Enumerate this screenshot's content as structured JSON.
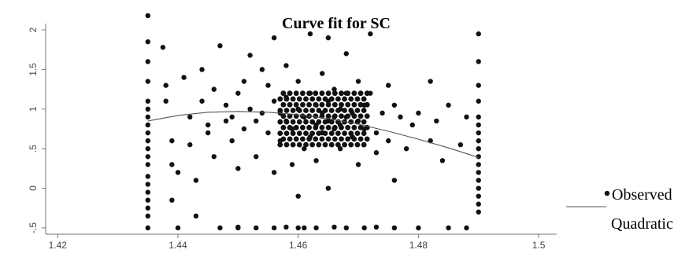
{
  "chart_data": {
    "type": "scatter",
    "title": "Curve fit for SC",
    "xlabel": "",
    "ylabel": "",
    "xlim": [
      1.418,
      1.503
    ],
    "ylim": [
      -0.58,
      2.08
    ],
    "xticks": [
      1.42,
      1.44,
      1.46,
      1.48,
      1.5
    ],
    "xtick_labels": [
      "1.42",
      "1.44",
      "1.46",
      "1.48",
      "1.5"
    ],
    "yticks": [
      -0.5,
      0,
      0.5,
      1,
      1.5,
      2
    ],
    "ytick_labels": [
      "-.5",
      "0",
      ".5",
      "1",
      "1.5",
      "2"
    ],
    "grid": false,
    "legend_position": "right",
    "series": [
      {
        "name": "Observed",
        "kind": "scatter",
        "color": "#111111",
        "points": [
          [
            1.435,
            2.18
          ],
          [
            1.435,
            1.85
          ],
          [
            1.435,
            1.6
          ],
          [
            1.435,
            1.35
          ],
          [
            1.435,
            1.1
          ],
          [
            1.435,
            1.0
          ],
          [
            1.435,
            0.9
          ],
          [
            1.435,
            0.8
          ],
          [
            1.435,
            0.7
          ],
          [
            1.435,
            0.6
          ],
          [
            1.435,
            0.5
          ],
          [
            1.435,
            0.4
          ],
          [
            1.435,
            0.3
          ],
          [
            1.435,
            0.15
          ],
          [
            1.435,
            0.05
          ],
          [
            1.435,
            -0.05
          ],
          [
            1.435,
            -0.15
          ],
          [
            1.435,
            -0.25
          ],
          [
            1.435,
            -0.35
          ],
          [
            1.435,
            -0.5
          ],
          [
            1.4375,
            1.78
          ],
          [
            1.438,
            1.3
          ],
          [
            1.438,
            1.1
          ],
          [
            1.439,
            0.6
          ],
          [
            1.439,
            0.3
          ],
          [
            1.439,
            -0.15
          ],
          [
            1.44,
            0.2
          ],
          [
            1.44,
            -0.5
          ],
          [
            1.441,
            1.4
          ],
          [
            1.442,
            0.9
          ],
          [
            1.442,
            0.55
          ],
          [
            1.443,
            0.1
          ],
          [
            1.443,
            -0.35
          ],
          [
            1.444,
            1.1
          ],
          [
            1.444,
            1.5
          ],
          [
            1.445,
            0.8
          ],
          [
            1.445,
            0.7
          ],
          [
            1.446,
            0.4
          ],
          [
            1.446,
            1.25
          ],
          [
            1.447,
            1.8
          ],
          [
            1.447,
            -0.5
          ],
          [
            1.448,
            1.05
          ],
          [
            1.448,
            0.85
          ],
          [
            1.449,
            0.9
          ],
          [
            1.449,
            0.6
          ],
          [
            1.45,
            1.2
          ],
          [
            1.45,
            0.25
          ],
          [
            1.45,
            -0.5
          ],
          [
            1.451,
            1.35
          ],
          [
            1.451,
            0.75
          ],
          [
            1.452,
            1.0
          ],
          [
            1.452,
            1.68
          ],
          [
            1.453,
            0.85
          ],
          [
            1.453,
            0.4
          ],
          [
            1.454,
            1.5
          ],
          [
            1.454,
            0.95
          ],
          [
            1.455,
            0.7
          ],
          [
            1.455,
            1.3
          ],
          [
            1.456,
            1.9
          ],
          [
            1.456,
            1.1
          ],
          [
            1.456,
            0.2
          ],
          [
            1.457,
            0.95
          ],
          [
            1.457,
            0.6
          ],
          [
            1.458,
            1.55
          ],
          [
            1.458,
            0.85
          ],
          [
            1.458,
            1.15
          ],
          [
            1.459,
            0.3
          ],
          [
            1.459,
            0.75
          ],
          [
            1.46,
            1.0
          ],
          [
            1.46,
            1.35
          ],
          [
            1.46,
            -0.1
          ],
          [
            1.46,
            -0.5
          ],
          [
            1.461,
            0.9
          ],
          [
            1.461,
            0.5
          ],
          [
            1.462,
            1.95
          ],
          [
            1.462,
            1.2
          ],
          [
            1.462,
            0.65
          ],
          [
            1.463,
            0.8
          ],
          [
            1.463,
            1.05
          ],
          [
            1.463,
            0.35
          ],
          [
            1.464,
            1.45
          ],
          [
            1.464,
            0.95
          ],
          [
            1.464,
            0.7
          ],
          [
            1.465,
            1.9
          ],
          [
            1.465,
            1.1
          ],
          [
            1.465,
            0.85
          ],
          [
            1.465,
            0.0
          ],
          [
            1.466,
            0.9
          ],
          [
            1.466,
            0.75
          ],
          [
            1.466,
            1.25
          ],
          [
            1.467,
            1.0
          ],
          [
            1.467,
            0.8
          ],
          [
            1.467,
            0.5
          ],
          [
            1.468,
            1.2
          ],
          [
            1.468,
            0.9
          ],
          [
            1.468,
            1.7
          ],
          [
            1.469,
            0.95
          ],
          [
            1.469,
            0.65
          ],
          [
            1.47,
            1.35
          ],
          [
            1.47,
            0.85
          ],
          [
            1.47,
            0.3
          ],
          [
            1.471,
            1.05
          ],
          [
            1.471,
            0.75
          ],
          [
            1.472,
            1.95
          ],
          [
            1.472,
            1.2
          ],
          [
            1.473,
            0.7
          ],
          [
            1.473,
            0.45
          ],
          [
            1.474,
            0.95
          ],
          [
            1.475,
            1.3
          ],
          [
            1.475,
            0.6
          ],
          [
            1.476,
            1.05
          ],
          [
            1.476,
            0.1
          ],
          [
            1.477,
            0.9
          ],
          [
            1.478,
            0.5
          ],
          [
            1.479,
            0.8
          ],
          [
            1.48,
            0.95
          ],
          [
            1.48,
            -0.5
          ],
          [
            1.482,
            1.35
          ],
          [
            1.482,
            0.6
          ],
          [
            1.483,
            0.85
          ],
          [
            1.484,
            0.35
          ],
          [
            1.485,
            1.05
          ],
          [
            1.485,
            -0.5
          ],
          [
            1.487,
            0.55
          ],
          [
            1.488,
            0.9
          ],
          [
            1.488,
            -0.5
          ],
          [
            1.49,
            1.95
          ],
          [
            1.49,
            1.6
          ],
          [
            1.49,
            1.3
          ],
          [
            1.49,
            1.1
          ],
          [
            1.49,
            0.9
          ],
          [
            1.49,
            0.8
          ],
          [
            1.49,
            0.7
          ],
          [
            1.49,
            0.6
          ],
          [
            1.49,
            0.5
          ],
          [
            1.49,
            0.4
          ],
          [
            1.49,
            0.3
          ],
          [
            1.49,
            0.2
          ],
          [
            1.49,
            0.1
          ],
          [
            1.49,
            0.0
          ],
          [
            1.49,
            -0.1
          ],
          [
            1.49,
            -0.2
          ],
          [
            1.49,
            -0.3
          ],
          [
            1.45,
            -0.49
          ],
          [
            1.453,
            -0.5
          ],
          [
            1.456,
            -0.5
          ],
          [
            1.458,
            -0.49
          ],
          [
            1.461,
            -0.5
          ],
          [
            1.463,
            -0.5
          ],
          [
            1.466,
            -0.49
          ],
          [
            1.468,
            -0.5
          ],
          [
            1.471,
            -0.5
          ],
          [
            1.473,
            -0.49
          ],
          [
            1.476,
            -0.5
          ]
        ]
      },
      {
        "name": "Quadratic",
        "kind": "line",
        "color": "#555555",
        "x": [
          1.435,
          1.44,
          1.445,
          1.45,
          1.455,
          1.46,
          1.465,
          1.47,
          1.475,
          1.48,
          1.485,
          1.49
        ],
        "y": [
          0.85,
          0.92,
          0.96,
          0.97,
          0.96,
          0.93,
          0.88,
          0.81,
          0.72,
          0.62,
          0.51,
          0.39
        ]
      }
    ],
    "dense_cluster": {
      "color": "#111111",
      "x_range": [
        1.457,
        1.472
      ],
      "y_range": [
        0.55,
        1.2
      ]
    }
  }
}
